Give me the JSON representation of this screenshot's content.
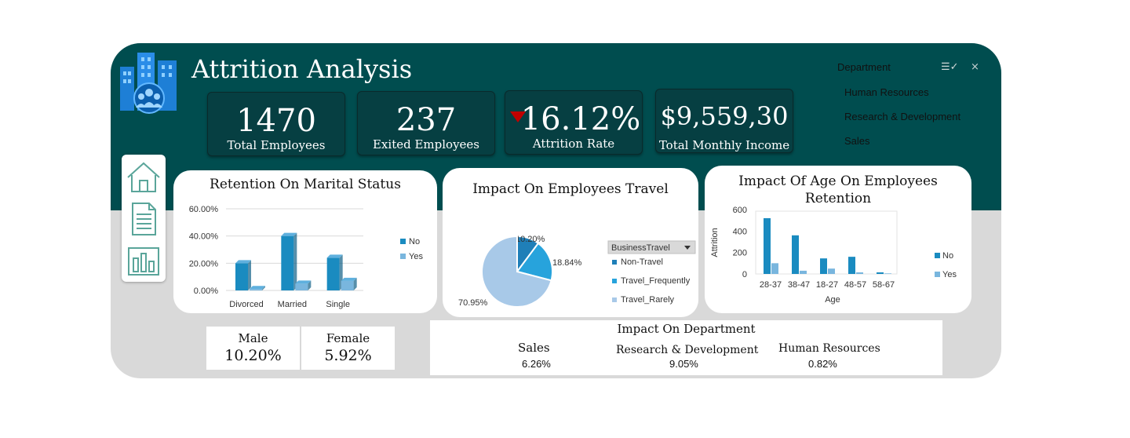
{
  "header": {
    "title": "Attrition Analysis"
  },
  "kpis": {
    "total_employees": {
      "value": "1470",
      "label": "Total Employees"
    },
    "exited_employees": {
      "value": "237",
      "label": "Exited Employees"
    },
    "attrition_rate": {
      "value": "16.12%",
      "label": "Attrition Rate"
    },
    "monthly_income": {
      "value": "$9,559,30",
      "label": "Total Monthly Income"
    }
  },
  "slicer": {
    "header": "Department",
    "items": [
      "Human Resources",
      "Research & Development",
      "Sales"
    ]
  },
  "nav": {
    "icons": [
      "home-icon",
      "report-icon",
      "dashboard-icon"
    ]
  },
  "gender": {
    "male": {
      "label": "Male",
      "value": "10.20%"
    },
    "female": {
      "label": "Female",
      "value": "5.92%"
    }
  },
  "department": {
    "title": "Impact On Department",
    "items": [
      {
        "name": "Sales",
        "value": "6.26%"
      },
      {
        "name": "Research & Development",
        "value": "9.05%"
      },
      {
        "name": "Human Resources",
        "value": "0.82%"
      }
    ]
  },
  "colors": {
    "header": "#004d4f",
    "kpi": "#063f42",
    "series_no": "#1a8bc0",
    "series_yes": "#79b6de",
    "pie_dark": "#1f7fb8",
    "pie_mid": "#27a3dc",
    "pie_light": "#a8c9e8"
  },
  "chart_data": [
    {
      "type": "bar",
      "title": "Retention On Marital Status",
      "categories": [
        "Divorced",
        "Married",
        "Single"
      ],
      "series": [
        {
          "name": "No",
          "values": [
            20.0,
            40.0,
            24.0
          ]
        },
        {
          "name": "Yes",
          "values": [
            1.0,
            5.0,
            7.0
          ]
        }
      ],
      "yticks": [
        "0.00%",
        "20.00%",
        "40.00%",
        "60.00%"
      ],
      "ylim": [
        0,
        60
      ],
      "legend": "right",
      "grid": true
    },
    {
      "type": "pie",
      "title": "Impact On Employees Travel",
      "filter_label": "BusinessTravel",
      "slices": [
        {
          "name": "Non-Travel",
          "value": 10.2,
          "label": "10.20%"
        },
        {
          "name": "Travel_Frequently",
          "value": 18.84,
          "label": "18.84%"
        },
        {
          "name": "Travel_Rarely",
          "value": 70.95,
          "label": "70.95%"
        }
      ],
      "legend": "right"
    },
    {
      "type": "bar",
      "title": "Impact Of Age On Employees Retention",
      "categories": [
        "28-37",
        "38-47",
        "18-27",
        "48-57",
        "58-67"
      ],
      "series": [
        {
          "name": "No",
          "values": [
            520,
            360,
            145,
            160,
            15
          ]
        },
        {
          "name": "Yes",
          "values": [
            100,
            30,
            50,
            15,
            5
          ]
        }
      ],
      "xlabel": "Age",
      "ylabel": "Attrition",
      "yticks": [
        "0",
        "200",
        "400",
        "600"
      ],
      "ylim": [
        0,
        600
      ],
      "legend": "right"
    }
  ]
}
